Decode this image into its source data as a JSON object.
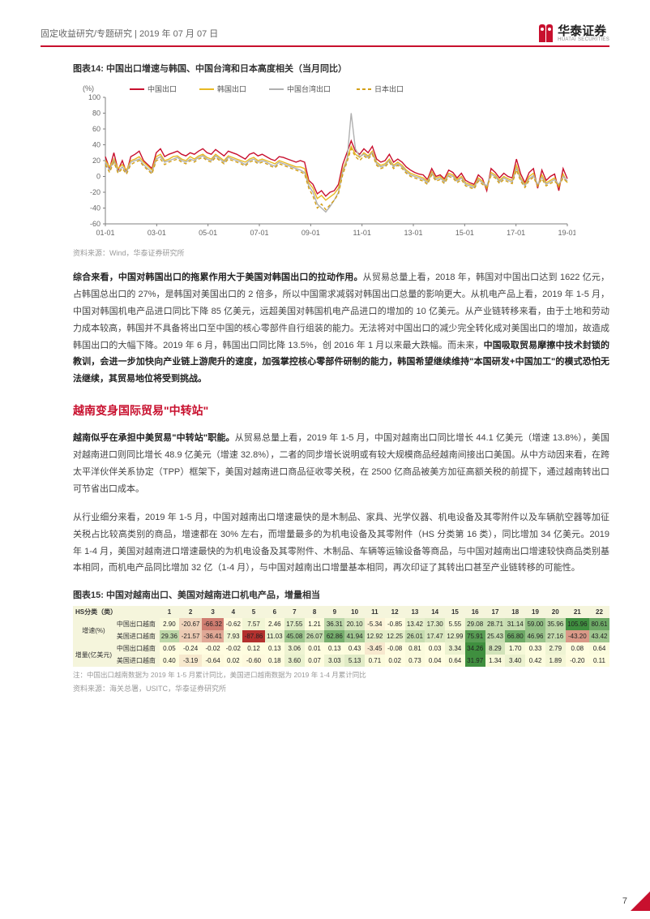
{
  "header": {
    "breadcrumb": "固定收益研究/专题研究 | 2019 年 07 月 07 日",
    "logo_cn": "华泰证券",
    "logo_en": "HUATAI SECURITIES"
  },
  "chart14": {
    "title": "图表14:   中国出口增速与韩国、中国台湾和日本高度相关（当月同比）",
    "type": "line",
    "y_label": "(%)",
    "ylim": [
      -60,
      100
    ],
    "ytick_step": 20,
    "xticks": [
      "01-01",
      "03-01",
      "05-01",
      "07-01",
      "09-01",
      "11-01",
      "13-01",
      "15-01",
      "17-01",
      "19-01"
    ],
    "n_points": 110,
    "background_color": "#ffffff",
    "axis_color": "#808080",
    "tick_fontsize": 9,
    "line_width": 1.4,
    "legend": [
      {
        "label": "中国出口",
        "color": "#c8102e",
        "dash": "solid"
      },
      {
        "label": "韩国出口",
        "color": "#e8b923",
        "dash": "solid"
      },
      {
        "label": "中国台湾出口",
        "color": "#b0b0b0",
        "dash": "solid"
      },
      {
        "label": "日本出口",
        "color": "#d4a017",
        "dash": "4 3"
      }
    ],
    "series": {
      "china": [
        25,
        10,
        30,
        8,
        20,
        5,
        25,
        28,
        32,
        20,
        15,
        10,
        30,
        35,
        25,
        28,
        30,
        32,
        28,
        26,
        30,
        28,
        32,
        35,
        30,
        28,
        34,
        30,
        26,
        32,
        30,
        28,
        25,
        22,
        28,
        30,
        26,
        28,
        25,
        22,
        20,
        25,
        24,
        22,
        20,
        18,
        20,
        18,
        -5,
        -10,
        -22,
        -18,
        -25,
        -20,
        -18,
        -10,
        15,
        30,
        45,
        32,
        28,
        35,
        30,
        38,
        22,
        18,
        20,
        28,
        18,
        22,
        18,
        12,
        8,
        5,
        3,
        2,
        -4,
        10,
        0,
        2,
        -3,
        8,
        5,
        -2,
        4,
        -5,
        -8,
        -10,
        2,
        -3,
        -18,
        10,
        5,
        -2,
        4,
        0,
        -2,
        22,
        3,
        -8,
        5,
        10,
        -15,
        8,
        -5,
        0,
        3,
        -18,
        10,
        -3
      ],
      "korea": [
        20,
        12,
        22,
        10,
        15,
        8,
        20,
        22,
        25,
        18,
        13,
        8,
        25,
        28,
        20,
        22,
        25,
        26,
        22,
        20,
        25,
        22,
        26,
        28,
        24,
        22,
        28,
        24,
        20,
        26,
        24,
        22,
        20,
        18,
        22,
        24,
        20,
        22,
        20,
        18,
        16,
        20,
        18,
        16,
        14,
        12,
        12,
        10,
        -8,
        -15,
        -28,
        -24,
        -30,
        -26,
        -22,
        -15,
        8,
        22,
        38,
        28,
        24,
        30,
        26,
        32,
        18,
        14,
        16,
        22,
        14,
        18,
        14,
        8,
        4,
        2,
        0,
        -2,
        -6,
        6,
        -2,
        0,
        -5,
        4,
        2,
        -4,
        0,
        -8,
        -10,
        -12,
        -2,
        -6,
        -15,
        5,
        2,
        -5,
        0,
        -3,
        -5,
        14,
        -2,
        -10,
        0,
        4,
        -12,
        2,
        -8,
        -5,
        -2,
        -13,
        3,
        -8
      ],
      "taiwan": [
        18,
        8,
        20,
        6,
        12,
        5,
        18,
        20,
        22,
        15,
        10,
        5,
        22,
        25,
        18,
        20,
        22,
        24,
        20,
        18,
        22,
        20,
        24,
        26,
        22,
        20,
        26,
        22,
        18,
        24,
        22,
        20,
        18,
        15,
        20,
        22,
        18,
        20,
        18,
        15,
        13,
        18,
        16,
        14,
        12,
        10,
        8,
        5,
        -12,
        -20,
        -35,
        -40,
        -45,
        -38,
        -30,
        -20,
        5,
        20,
        80,
        35,
        25,
        28,
        24,
        30,
        16,
        12,
        14,
        20,
        12,
        16,
        12,
        6,
        2,
        0,
        -2,
        -4,
        -8,
        4,
        -4,
        -2,
        -7,
        2,
        0,
        -6,
        -2,
        -10,
        -12,
        -14,
        -4,
        -8,
        -12,
        3,
        0,
        -7,
        -2,
        -5,
        -7,
        10,
        -4,
        -12,
        -3,
        1,
        -10,
        -1,
        -10,
        -7,
        -4,
        -10,
        0,
        -6
      ],
      "japan": [
        15,
        5,
        18,
        4,
        10,
        3,
        15,
        18,
        20,
        13,
        8,
        3,
        20,
        22,
        15,
        18,
        20,
        22,
        18,
        16,
        20,
        18,
        22,
        24,
        20,
        18,
        24,
        20,
        16,
        22,
        20,
        18,
        16,
        13,
        18,
        20,
        16,
        18,
        16,
        13,
        11,
        16,
        14,
        12,
        10,
        8,
        6,
        3,
        -15,
        -25,
        -40,
        -35,
        -42,
        -36,
        -30,
        -22,
        2,
        18,
        35,
        25,
        20,
        26,
        22,
        28,
        14,
        10,
        12,
        18,
        10,
        14,
        10,
        4,
        0,
        -2,
        -4,
        -6,
        -10,
        2,
        -6,
        -4,
        -9,
        0,
        -2,
        -8,
        -4,
        -12,
        -14,
        -16,
        -6,
        -10,
        -14,
        1,
        -2,
        -9,
        -4,
        -7,
        -9,
        8,
        -6,
        -14,
        -5,
        -1,
        -12,
        -3,
        -12,
        -9,
        -6,
        -12,
        -2,
        -8
      ]
    },
    "source": "资料来源：Wind，华泰证券研究所"
  },
  "para1": {
    "lead": "综合来看，中国对韩国出口的拖累作用大于美国对韩国出口的拉动作用。",
    "body1": "从贸易总量上看，2018 年，韩国对中国出口达到 1622 亿元，占韩国总出口的 27%，是韩国对美国出口的 2 倍多，所以中国需求减弱对韩国出口总量的影响更大。从机电产品上看，2019 年 1-5 月，中国对韩国机电产品进口同比下降 85 亿美元，远超美国对韩国机电产品进口的增加的 10 亿美元。从产业链转移来看，由于土地和劳动力成本较高，韩国并不具备将出口至中国的核心零部件自行组装的能力。无法将对中国出口的减少完全转化成对美国出口的增加，故造成韩国出口的大幅下降。2019 年 6 月，韩国出口同比降 13.5%，创 2016 年 1 月以来最大跌幅。而未来，",
    "bold2": "中国吸取贸易摩擦中技术封锁的教训，会进一步加快向产业链上游爬升的速度，加强掌控核心零部件研制的能力，韩国希望继续维持\"本国研发+中国加工\"的模式恐怕无法继续，其贸易地位将受到挑战。"
  },
  "section": "越南变身国际贸易\"中转站\"",
  "para2": {
    "lead": "越南似乎在承担中美贸易\"中转站\"职能。",
    "body": "从贸易总量上看，2019 年 1-5 月，中国对越南出口同比增长 44.1 亿美元（增速 13.8%），美国对越南进口则同比增长 48.9 亿美元（增速 32.8%），二者的同步增长说明或有较大规模商品经越南间接出口美国。从中方动因来看，在跨太平洋伙伴关系协定（TPP）框架下，美国对越南进口商品征收零关税，在 2500 亿商品被美方加征高额关税的前提下，通过越南转出口可节省出口成本。"
  },
  "para3": "从行业细分来看，2019 年 1-5 月，中国对越南出口增速最快的是木制品、家具、光学仪器、机电设备及其零附件以及车辆航空器等加征关税占比较高类别的商品，增速都在 30% 左右，而增量最多的为机电设备及其零附件（HS 分类第 16 类），同比增加 34 亿美元。2019 年 1-4 月，美国对越南进口增速最快的为机电设备及其零附件、木制品、车辆等运输设备等商品，与中国对越南出口增速较快商品类别基本相同，而机电产品同比增加 32 亿（1-4 月），与中国对越南出口增量基本相同，再次印证了其转出口甚至产业链转移的可能性。",
  "chart15": {
    "title": "图表15:   中国对越南出口、美国对越南进口机电产品，增量相当",
    "type": "table-heatmap",
    "header_bg": "#f5f5dc",
    "cell_fontsize": 8,
    "columns_label": "HS分类（类）",
    "columns": [
      "1",
      "2",
      "3",
      "4",
      "5",
      "6",
      "7",
      "8",
      "9",
      "10",
      "11",
      "12",
      "13",
      "14",
      "15",
      "16",
      "17",
      "18",
      "19",
      "20",
      "21",
      "22"
    ],
    "row_groups": [
      {
        "label": "增速(%)",
        "rows": [
          "中国出口越南",
          "美国进口越南"
        ]
      },
      {
        "label": "增量(亿美元)",
        "rows": [
          "中国出口越南",
          "美国进口越南"
        ]
      }
    ],
    "data": [
      [
        2.9,
        -20.67,
        -66.32,
        -0.62,
        7.57,
        2.46,
        17.55,
        1.21,
        36.31,
        20.1,
        -5.34,
        -0.85,
        13.42,
        17.3,
        5.55,
        29.08,
        28.71,
        31.14,
        59.0,
        35.96,
        105.96,
        80.61
      ],
      [
        29.36,
        -21.57,
        -36.41,
        7.93,
        -87.86,
        11.03,
        45.08,
        26.07,
        62.86,
        41.94,
        12.92,
        12.25,
        26.01,
        17.47,
        12.99,
        75.91,
        25.43,
        66.8,
        46.96,
        27.16,
        -43.2,
        43.42
      ],
      [
        0.05,
        -0.24,
        -0.02,
        -0.02,
        0.12,
        0.13,
        3.06,
        0.01,
        0.13,
        0.43,
        -3.45,
        -0.08,
        0.81,
        0.03,
        3.34,
        34.26,
        8.29,
        1.7,
        0.33,
        2.79,
        0.08,
        0.64
      ],
      [
        0.4,
        -3.19,
        -0.64,
        0.02,
        -0.6,
        0.18,
        3.6,
        0.07,
        3.03,
        5.13,
        0.71,
        0.02,
        0.73,
        0.04,
        0.64,
        31.97,
        1.34,
        3.4,
        0.42,
        1.89,
        -0.2,
        0.11
      ]
    ],
    "color_scale": {
      "min_color": "#b3312e",
      "mid_color": "#fffde0",
      "max_color": "#3f8f3f",
      "neutral_threshold": 0
    },
    "note": "注：中国出口越南数据为 2019 年 1-5 月累计同比，美国进口越南数据为 2019 年 1-4 月累计同比",
    "source": "资料来源：海关总署，USITC，华泰证券研究所"
  },
  "page_number": "7"
}
